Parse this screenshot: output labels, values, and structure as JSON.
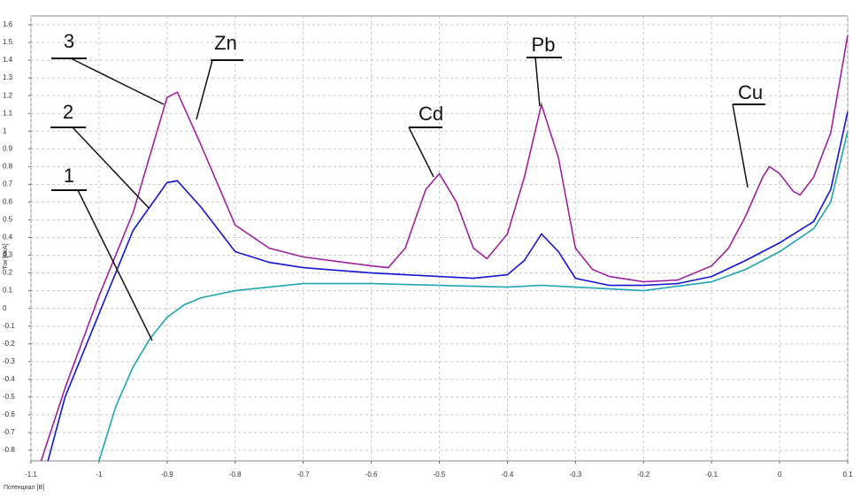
{
  "chart_data": {
    "type": "line",
    "x_label": "Потенциал [В]",
    "y_label": "Ток [мкА]",
    "xlim": [
      -1.1,
      0.1
    ],
    "ylim": [
      -0.86,
      1.65
    ],
    "xticks": [
      -1.1,
      -1,
      -0.9,
      -0.8,
      -0.7,
      -0.6,
      -0.5,
      -0.4,
      -0.3,
      -0.2,
      -0.1,
      0,
      0.1
    ],
    "yticks": [
      -0.8,
      -0.7,
      -0.6,
      -0.5,
      -0.4,
      -0.3,
      -0.2,
      -0.1,
      0,
      0.1,
      0.2,
      0.3,
      0.4,
      0.5,
      0.6,
      0.7,
      0.8,
      0.9,
      1,
      1.1,
      1.2,
      1.3,
      1.4,
      1.5,
      1.6
    ],
    "grid": true,
    "series": [
      {
        "name": "1",
        "color": "#1fa5b5",
        "x": [
          -1,
          -0.975,
          -0.95,
          -0.925,
          -0.9,
          -0.875,
          -0.85,
          -0.8,
          -0.75,
          -0.7,
          -0.6,
          -0.5,
          -0.4,
          -0.35,
          -0.3,
          -0.2,
          -0.1,
          -0.05,
          0,
          0.05,
          0.075,
          0.1
        ],
        "values": [
          -0.86,
          -0.55,
          -0.33,
          -0.17,
          -0.05,
          0.02,
          0.06,
          0.1,
          0.12,
          0.14,
          0.14,
          0.13,
          0.12,
          0.13,
          0.12,
          0.1,
          0.15,
          0.22,
          0.32,
          0.45,
          0.6,
          1.0
        ]
      },
      {
        "name": "2",
        "color": "#1414d2",
        "x": [
          -1.075,
          -1.05,
          -1,
          -0.95,
          -0.9,
          -0.885,
          -0.85,
          -0.8,
          -0.75,
          -0.7,
          -0.6,
          -0.5,
          -0.45,
          -0.4,
          -0.375,
          -0.35,
          -0.325,
          -0.3,
          -0.25,
          -0.2,
          -0.15,
          -0.1,
          -0.05,
          0,
          0.05,
          0.075,
          0.1
        ],
        "values": [
          -0.86,
          -0.5,
          -0.03,
          0.44,
          0.71,
          0.72,
          0.57,
          0.32,
          0.26,
          0.23,
          0.2,
          0.18,
          0.17,
          0.19,
          0.27,
          0.42,
          0.32,
          0.17,
          0.13,
          0.13,
          0.14,
          0.18,
          0.27,
          0.37,
          0.49,
          0.67,
          1.11
        ]
      },
      {
        "name": "3",
        "color": "#a020a0",
        "x": [
          -1.085,
          -1.05,
          -1,
          -0.95,
          -0.9,
          -0.885,
          -0.85,
          -0.8,
          -0.75,
          -0.7,
          -0.6,
          -0.575,
          -0.55,
          -0.52,
          -0.5,
          -0.475,
          -0.45,
          -0.43,
          -0.4,
          -0.375,
          -0.35,
          -0.325,
          -0.3,
          -0.275,
          -0.25,
          -0.2,
          -0.15,
          -0.1,
          -0.075,
          -0.05,
          -0.025,
          -0.015,
          0,
          0.02,
          0.03,
          0.05,
          0.075,
          0.1
        ],
        "values": [
          -0.86,
          -0.45,
          0.07,
          0.54,
          1.19,
          1.22,
          0.92,
          0.47,
          0.34,
          0.29,
          0.24,
          0.23,
          0.34,
          0.67,
          0.76,
          0.6,
          0.34,
          0.28,
          0.42,
          0.74,
          1.15,
          0.85,
          0.34,
          0.22,
          0.18,
          0.15,
          0.16,
          0.24,
          0.34,
          0.52,
          0.74,
          0.8,
          0.76,
          0.66,
          0.64,
          0.74,
          0.99,
          1.54
        ]
      }
    ],
    "annotations": [
      "3",
      "2",
      "1",
      "Zn",
      "Cd",
      "Pb",
      "Cu"
    ]
  }
}
